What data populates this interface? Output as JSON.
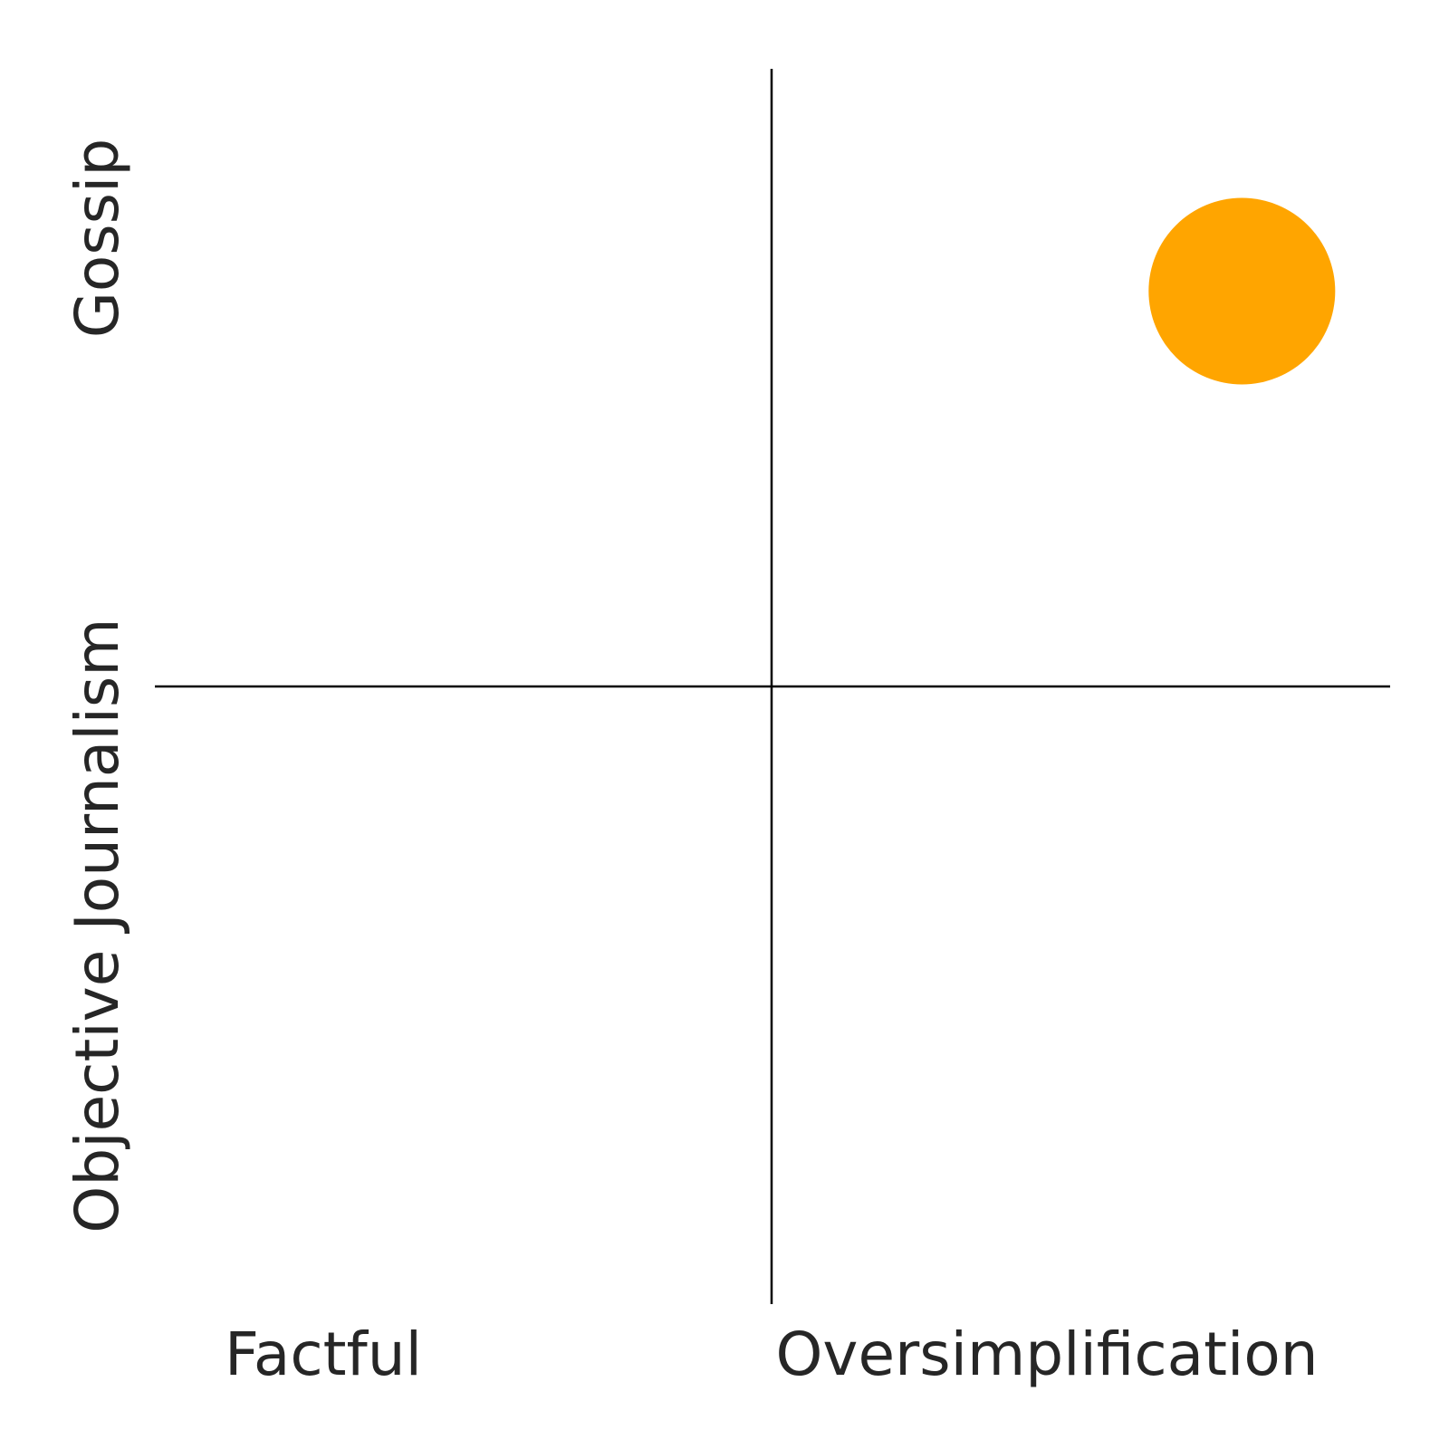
{
  "chart_data": {
    "type": "scatter",
    "title": "",
    "x_axis": {
      "range": [
        0,
        1
      ],
      "low_label": "Factful",
      "high_label": "Oversimplification"
    },
    "y_axis": {
      "range": [
        0,
        1
      ],
      "low_label": "Objective Journalism",
      "high_label": "Gossip"
    },
    "grid": false,
    "legend": "none",
    "points": [
      {
        "x": 0.88,
        "y": 0.82,
        "color": "#FFA500"
      }
    ]
  }
}
